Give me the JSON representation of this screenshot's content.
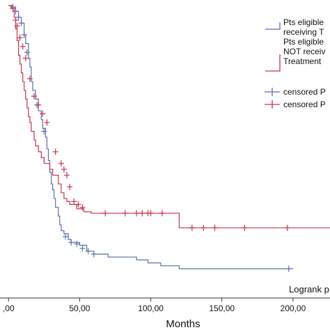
{
  "chart_data": {
    "type": "line",
    "subtype": "kaplan-meier",
    "title": "",
    "xlabel": "Months",
    "ylabel": "",
    "xlim": [
      -6,
      226
    ],
    "ylim": [
      0,
      1.0
    ],
    "x_ticks": [
      0,
      50,
      100,
      150,
      200
    ],
    "x_tick_labels": [
      ",00",
      "50,00",
      "100,00",
      "150,00",
      "200,00"
    ],
    "grid": false,
    "legend_position": "top-right",
    "legend": [
      {
        "label": "Pts eligible",
        "label2": "receiving T",
        "label3": "",
        "kind": "line",
        "series": "blue"
      },
      {
        "label": "Pts eligible",
        "label2": "NOT receiv",
        "label3": "Treatment",
        "kind": "line",
        "series": "red"
      },
      {
        "label": "censored P",
        "label2": "",
        "label3": "",
        "kind": "censor",
        "series": "blue"
      },
      {
        "label": "censored P",
        "label2": "",
        "label3": "",
        "kind": "censor",
        "series": "red"
      }
    ],
    "annotation": "Logrank p",
    "series": [
      {
        "key": "blue",
        "color": "#5b6fa8",
        "steps": [
          [
            0,
            1.0
          ],
          [
            3,
            0.995
          ],
          [
            5,
            0.98
          ],
          [
            7,
            0.96
          ],
          [
            9,
            0.94
          ],
          [
            11,
            0.9
          ],
          [
            12,
            0.87
          ],
          [
            14,
            0.82
          ],
          [
            15,
            0.79
          ],
          [
            16,
            0.74
          ],
          [
            17,
            0.71
          ],
          [
            19,
            0.68
          ],
          [
            21,
            0.64
          ],
          [
            23,
            0.61
          ],
          [
            24,
            0.58
          ],
          [
            26,
            0.55
          ],
          [
            27,
            0.51
          ],
          [
            28,
            0.47
          ],
          [
            29,
            0.43
          ],
          [
            30,
            0.39
          ],
          [
            31,
            0.37
          ],
          [
            32,
            0.34
          ],
          [
            33,
            0.31
          ],
          [
            35,
            0.28
          ],
          [
            36,
            0.25
          ],
          [
            37,
            0.23
          ],
          [
            39,
            0.22
          ],
          [
            42,
            0.2
          ],
          [
            44,
            0.19
          ],
          [
            50,
            0.18
          ],
          [
            55,
            0.16
          ],
          [
            60,
            0.15
          ],
          [
            70,
            0.14
          ],
          [
            90,
            0.13
          ],
          [
            98,
            0.12
          ],
          [
            107,
            0.11
          ],
          [
            120,
            0.1
          ],
          [
            200,
            0.1
          ]
        ],
        "censored": [
          [
            3,
            0.995
          ],
          [
            5,
            0.98
          ],
          [
            7,
            0.96
          ],
          [
            9,
            0.94
          ],
          [
            11,
            0.9
          ],
          [
            13,
            0.84
          ],
          [
            20,
            0.66
          ],
          [
            25,
            0.57
          ],
          [
            40,
            0.21
          ],
          [
            44,
            0.19
          ],
          [
            48,
            0.185
          ],
          [
            52,
            0.17
          ],
          [
            56,
            0.16
          ],
          [
            60,
            0.15
          ],
          [
            197,
            0.1
          ]
        ]
      },
      {
        "key": "red",
        "color": "#c7334e",
        "steps": [
          [
            0,
            1.0
          ],
          [
            2,
            0.99
          ],
          [
            4,
            0.96
          ],
          [
            5,
            0.92
          ],
          [
            6,
            0.88
          ],
          [
            7,
            0.83
          ],
          [
            8,
            0.8
          ],
          [
            9,
            0.77
          ],
          [
            10,
            0.74
          ],
          [
            11,
            0.71
          ],
          [
            12,
            0.68
          ],
          [
            13,
            0.65
          ],
          [
            14,
            0.62
          ],
          [
            15,
            0.6
          ],
          [
            16,
            0.57
          ],
          [
            18,
            0.54
          ],
          [
            19,
            0.52
          ],
          [
            21,
            0.5
          ],
          [
            23,
            0.48
          ],
          [
            25,
            0.46
          ],
          [
            29,
            0.44
          ],
          [
            31,
            0.42
          ],
          [
            35,
            0.39
          ],
          [
            37,
            0.36
          ],
          [
            39,
            0.34
          ],
          [
            41,
            0.33
          ],
          [
            43,
            0.32
          ],
          [
            48,
            0.305
          ],
          [
            53,
            0.295
          ],
          [
            58,
            0.29
          ],
          [
            73,
            0.29
          ],
          [
            120,
            0.24
          ],
          [
            226,
            0.24
          ]
        ],
        "censored": [
          [
            3,
            0.99
          ],
          [
            5,
            0.95
          ],
          [
            6,
            0.93
          ],
          [
            8,
            0.89
          ],
          [
            10,
            0.86
          ],
          [
            12,
            0.82
          ],
          [
            15,
            0.75
          ],
          [
            18,
            0.69
          ],
          [
            21,
            0.66
          ],
          [
            24,
            0.63
          ],
          [
            27,
            0.6
          ],
          [
            33,
            0.5
          ],
          [
            37,
            0.46
          ],
          [
            39,
            0.44
          ],
          [
            41,
            0.42
          ],
          [
            43,
            0.38
          ],
          [
            46,
            0.33
          ],
          [
            49,
            0.32
          ],
          [
            52,
            0.31
          ],
          [
            68,
            0.29
          ],
          [
            82,
            0.29
          ],
          [
            90,
            0.29
          ],
          [
            94,
            0.29
          ],
          [
            98,
            0.29
          ],
          [
            100,
            0.29
          ],
          [
            108,
            0.29
          ],
          [
            129,
            0.24
          ],
          [
            137,
            0.24
          ],
          [
            145,
            0.24
          ],
          [
            166,
            0.24
          ],
          [
            196,
            0.24
          ]
        ]
      }
    ]
  }
}
